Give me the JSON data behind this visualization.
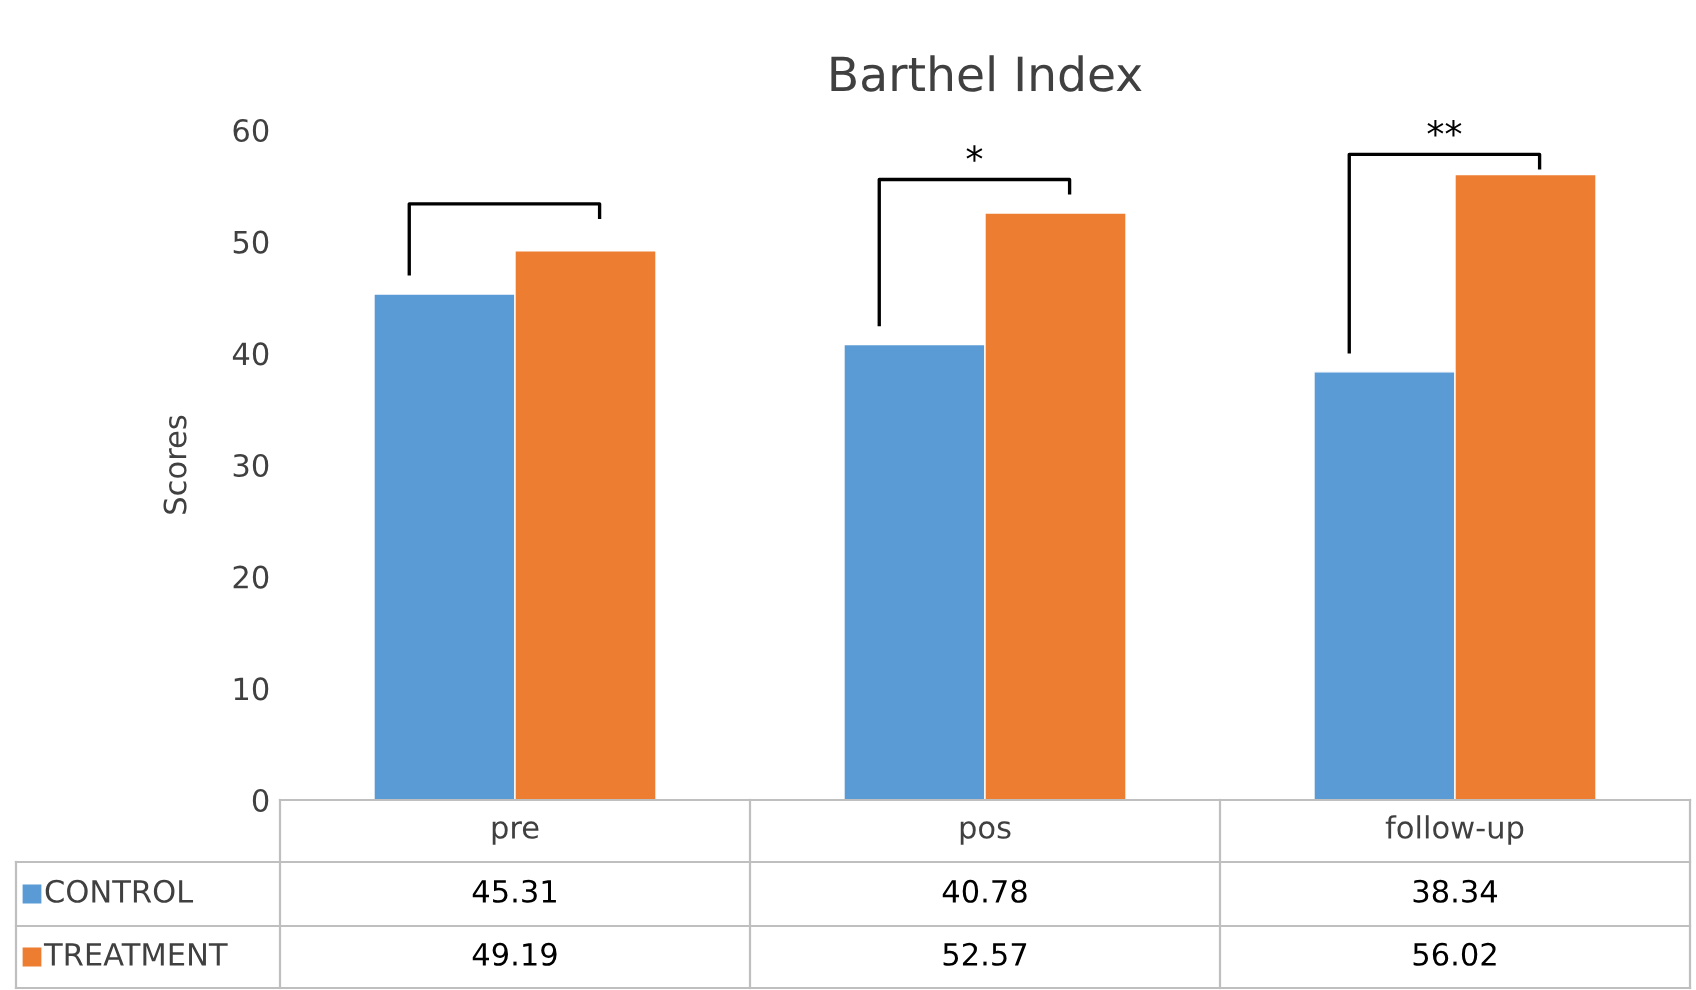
{
  "chart_data": {
    "type": "bar",
    "title": "Barthel Index",
    "ylabel": "Scores",
    "categories": [
      "pre",
      "pos",
      "follow-up"
    ],
    "series": [
      {
        "name": "CONTROL",
        "color": "#5b9bd5",
        "values": [
          45.31,
          40.78,
          38.34
        ]
      },
      {
        "name": "TREATMENT",
        "color": "#ed7d31",
        "values": [
          49.19,
          52.57,
          56.02
        ]
      }
    ],
    "ylim": [
      0,
      60
    ],
    "yticks": [
      0,
      10,
      20,
      30,
      40,
      50,
      60
    ],
    "grid": false,
    "legend": "bottom",
    "data_labels": true,
    "annotations": [
      "*",
      "**"
    ]
  }
}
